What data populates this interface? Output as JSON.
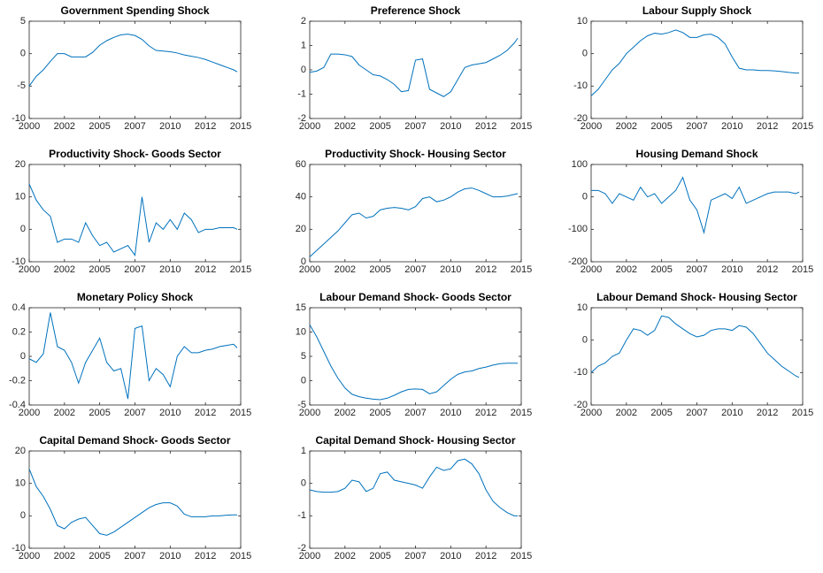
{
  "chart_data": [
    {
      "type": "line",
      "title": "Government Spending Shock",
      "x": [
        2000,
        2000.5,
        2001,
        2001.5,
        2002,
        2002.5,
        2003,
        2003.5,
        2004,
        2004.5,
        2005,
        2005.5,
        2006,
        2006.5,
        2007,
        2007.5,
        2008,
        2008.5,
        2009,
        2009.5,
        2010,
        2010.5,
        2011,
        2011.5,
        2012,
        2012.5,
        2013,
        2013.5,
        2014,
        2014.5,
        2014.75
      ],
      "series": [
        {
          "color": "#0072bd",
          "values": [
            -5,
            -3.5,
            -2.5,
            -1.2,
            0,
            0,
            -0.5,
            -0.5,
            -0.5,
            0.2,
            1.3,
            2,
            2.5,
            2.9,
            3,
            2.8,
            2.2,
            1.2,
            0.5,
            0.4,
            0.3,
            0.1,
            -0.2,
            -0.4,
            -0.6,
            -0.9,
            -1.3,
            -1.7,
            -2.1,
            -2.5,
            -2.8
          ]
        }
      ],
      "xlim": [
        2000,
        2015
      ],
      "xticks": [
        2000,
        {
          "value": 2002.5,
          "label": "2002"
        },
        2005,
        {
          "value": 2007.5,
          "label": "2007"
        },
        2010,
        {
          "value": 2012.5,
          "label": "2012"
        },
        2015
      ],
      "ylim": [
        -10,
        5
      ],
      "yticks": [
        -10,
        -5,
        0,
        5
      ]
    },
    {
      "type": "line",
      "title": "Preference Shock",
      "x": [
        2000,
        2000.5,
        2001,
        2001.5,
        2002,
        2002.5,
        2003,
        2003.5,
        2004,
        2004.5,
        2005,
        2005.5,
        2006,
        2006.5,
        2007,
        2007.5,
        2008,
        2008.5,
        2009,
        2009.5,
        2010,
        2010.5,
        2011,
        2011.5,
        2012,
        2012.5,
        2013,
        2013.5,
        2014,
        2014.5,
        2014.75
      ],
      "series": [
        {
          "color": "#0072bd",
          "values": [
            -0.1,
            -0.05,
            0.1,
            0.65,
            0.65,
            0.62,
            0.55,
            0.2,
            0,
            -0.2,
            -0.25,
            -0.4,
            -0.6,
            -0.9,
            -0.85,
            0.4,
            0.45,
            -0.8,
            -0.95,
            -1.1,
            -0.9,
            -0.4,
            0.1,
            0.2,
            0.25,
            0.3,
            0.45,
            0.6,
            0.8,
            1.1,
            1.3
          ]
        }
      ],
      "xlim": [
        2000,
        2015
      ],
      "xticks": [
        2000,
        {
          "value": 2002.5,
          "label": "2002"
        },
        2005,
        {
          "value": 2007.5,
          "label": "2007"
        },
        2010,
        {
          "value": 2012.5,
          "label": "2012"
        },
        2015
      ],
      "ylim": [
        -2,
        2
      ],
      "yticks": [
        -2,
        -1,
        0,
        1,
        2
      ]
    },
    {
      "type": "line",
      "title": "Labour Supply Shock",
      "x": [
        2000,
        2000.5,
        2001,
        2001.5,
        2002,
        2002.5,
        2003,
        2003.5,
        2004,
        2004.5,
        2005,
        2005.5,
        2006,
        2006.5,
        2007,
        2007.5,
        2008,
        2008.5,
        2009,
        2009.5,
        2010,
        2010.5,
        2011,
        2011.5,
        2012,
        2012.5,
        2013,
        2013.5,
        2014,
        2014.5,
        2014.75
      ],
      "series": [
        {
          "color": "#0072bd",
          "values": [
            -13,
            -11,
            -8,
            -5,
            -3,
            0,
            2,
            4,
            5.5,
            6.3,
            6,
            6.5,
            7.3,
            6.5,
            5,
            5,
            5.8,
            6,
            5,
            3,
            -1,
            -4.5,
            -5,
            -5,
            -5.2,
            -5.2,
            -5.3,
            -5.5,
            -5.8,
            -6,
            -6
          ]
        }
      ],
      "xlim": [
        2000,
        2015
      ],
      "xticks": [
        2000,
        {
          "value": 2002.5,
          "label": "2002"
        },
        2005,
        {
          "value": 2007.5,
          "label": "2007"
        },
        2010,
        {
          "value": 2012.5,
          "label": "2012"
        },
        2015
      ],
      "ylim": [
        -20,
        10
      ],
      "yticks": [
        -20,
        -10,
        0,
        10
      ]
    },
    {
      "type": "line",
      "title": "Productivity Shock- Goods Sector",
      "x": [
        2000,
        2000.5,
        2001,
        2001.5,
        2002,
        2002.5,
        2003,
        2003.5,
        2004,
        2004.5,
        2005,
        2005.5,
        2006,
        2006.5,
        2007,
        2007.5,
        2008,
        2008.5,
        2009,
        2009.5,
        2010,
        2010.5,
        2011,
        2011.5,
        2012,
        2012.5,
        2013,
        2013.5,
        2014,
        2014.5,
        2014.75
      ],
      "series": [
        {
          "color": "#0072bd",
          "values": [
            14,
            9,
            6,
            4,
            -4,
            -3,
            -3,
            -4,
            2,
            -2,
            -5,
            -4,
            -7,
            -6,
            -5,
            -8,
            10,
            -4,
            2,
            0,
            3,
            0,
            5,
            3,
            -1,
            0,
            0,
            0.5,
            0.5,
            0.5,
            0
          ]
        }
      ],
      "xlim": [
        2000,
        2015
      ],
      "xticks": [
        2000,
        {
          "value": 2002.5,
          "label": "2002"
        },
        2005,
        {
          "value": 2007.5,
          "label": "2007"
        },
        2010,
        {
          "value": 2012.5,
          "label": "2012"
        },
        2015
      ],
      "ylim": [
        -10,
        20
      ],
      "yticks": [
        -10,
        0,
        10,
        20
      ]
    },
    {
      "type": "line",
      "title": "Productivity Shock- Housing Sector",
      "x": [
        2000,
        2000.5,
        2001,
        2001.5,
        2002,
        2002.5,
        2003,
        2003.5,
        2004,
        2004.5,
        2005,
        2005.5,
        2006,
        2006.5,
        2007,
        2007.5,
        2008,
        2008.5,
        2009,
        2009.5,
        2010,
        2010.5,
        2011,
        2011.5,
        2012,
        2012.5,
        2013,
        2013.5,
        2014,
        2014.5,
        2014.75
      ],
      "series": [
        {
          "color": "#0072bd",
          "values": [
            3,
            7,
            11,
            15,
            19,
            24,
            29,
            30,
            27,
            28,
            32,
            33,
            33.5,
            33,
            32,
            34,
            39,
            40,
            37,
            38,
            40,
            43,
            45,
            45.5,
            44,
            42,
            40,
            40,
            40.5,
            41.5,
            42
          ]
        }
      ],
      "xlim": [
        2000,
        2015
      ],
      "xticks": [
        2000,
        {
          "value": 2002.5,
          "label": "2002"
        },
        2005,
        {
          "value": 2007.5,
          "label": "2007"
        },
        2010,
        {
          "value": 2012.5,
          "label": "2012"
        },
        2015
      ],
      "ylim": [
        0,
        60
      ],
      "yticks": [
        0,
        20,
        40,
        60
      ]
    },
    {
      "type": "line",
      "title": "Housing Demand Shock",
      "x": [
        2000,
        2000.5,
        2001,
        2001.5,
        2002,
        2002.5,
        2003,
        2003.5,
        2004,
        2004.5,
        2005,
        2005.5,
        2006,
        2006.5,
        2007,
        2007.5,
        2008,
        2008.5,
        2009,
        2009.5,
        2010,
        2010.5,
        2011,
        2011.5,
        2012,
        2012.5,
        2013,
        2013.5,
        2014,
        2014.5,
        2014.75
      ],
      "series": [
        {
          "color": "#0072bd",
          "values": [
            20,
            20,
            10,
            -20,
            10,
            0,
            -10,
            30,
            0,
            10,
            -20,
            0,
            20,
            60,
            -10,
            -40,
            -110,
            -10,
            0,
            10,
            -5,
            30,
            -20,
            -10,
            0,
            10,
            15,
            15,
            15,
            10,
            15
          ]
        }
      ],
      "xlim": [
        2000,
        2015
      ],
      "xticks": [
        2000,
        {
          "value": 2002.5,
          "label": "2002"
        },
        2005,
        {
          "value": 2007.5,
          "label": "2007"
        },
        2010,
        {
          "value": 2012.5,
          "label": "2012"
        },
        2015
      ],
      "ylim": [
        -200,
        100
      ],
      "yticks": [
        -200,
        -100,
        0,
        100
      ]
    },
    {
      "type": "line",
      "title": "Monetary Policy Shock",
      "x": [
        2000,
        2000.5,
        2001,
        2001.5,
        2002,
        2002.5,
        2003,
        2003.5,
        2004,
        2004.5,
        2005,
        2005.5,
        2006,
        2006.5,
        2007,
        2007.5,
        2008,
        2008.5,
        2009,
        2009.5,
        2010,
        2010.5,
        2011,
        2011.5,
        2012,
        2012.5,
        2013,
        2013.5,
        2014,
        2014.5,
        2014.75
      ],
      "series": [
        {
          "color": "#0072bd",
          "values": [
            -0.02,
            -0.05,
            0.02,
            0.36,
            0.08,
            0.05,
            -0.05,
            -0.22,
            -0.05,
            0.05,
            0.15,
            -0.05,
            -0.12,
            -0.1,
            -0.35,
            0.23,
            0.25,
            -0.2,
            -0.1,
            -0.15,
            -0.25,
            0,
            0.08,
            0.03,
            0.03,
            0.05,
            0.06,
            0.08,
            0.09,
            0.1,
            0.07
          ]
        }
      ],
      "xlim": [
        2000,
        2015
      ],
      "xticks": [
        2000,
        {
          "value": 2002.5,
          "label": "2002"
        },
        2005,
        {
          "value": 2007.5,
          "label": "2007"
        },
        2010,
        {
          "value": 2012.5,
          "label": "2012"
        },
        2015
      ],
      "ylim": [
        -0.4,
        0.4
      ],
      "yticks": [
        -0.4,
        -0.2,
        0,
        0.2,
        0.4
      ]
    },
    {
      "type": "line",
      "title": "Labour Demand Shock- Goods Sector",
      "x": [
        2000,
        2000.5,
        2001,
        2001.5,
        2002,
        2002.5,
        2003,
        2003.5,
        2004,
        2004.5,
        2005,
        2005.5,
        2006,
        2006.5,
        2007,
        2007.5,
        2008,
        2008.5,
        2009,
        2009.5,
        2010,
        2010.5,
        2011,
        2011.5,
        2012,
        2012.5,
        2013,
        2013.5,
        2014,
        2014.5,
        2014.75
      ],
      "series": [
        {
          "color": "#0072bd",
          "values": [
            11.5,
            9,
            6,
            3,
            0.5,
            -1.5,
            -2.8,
            -3.3,
            -3.6,
            -3.8,
            -3.9,
            -3.6,
            -3,
            -2.3,
            -1.8,
            -1.7,
            -1.8,
            -2.7,
            -2.3,
            -1,
            0.3,
            1.3,
            1.8,
            2,
            2.5,
            2.8,
            3.2,
            3.5,
            3.6,
            3.6,
            3.6
          ]
        }
      ],
      "xlim": [
        2000,
        2015
      ],
      "xticks": [
        2000,
        {
          "value": 2002.5,
          "label": "2002"
        },
        2005,
        {
          "value": 2007.5,
          "label": "2007"
        },
        2010,
        {
          "value": 2012.5,
          "label": "2012"
        },
        2015
      ],
      "ylim": [
        -5,
        15
      ],
      "yticks": [
        -5,
        0,
        5,
        10,
        15
      ]
    },
    {
      "type": "line",
      "title": "Labour Demand Shock- Housing Sector",
      "x": [
        2000,
        2000.5,
        2001,
        2001.5,
        2002,
        2002.5,
        2003,
        2003.5,
        2004,
        2004.5,
        2005,
        2005.5,
        2006,
        2006.5,
        2007,
        2007.5,
        2008,
        2008.5,
        2009,
        2009.5,
        2010,
        2010.5,
        2011,
        2011.5,
        2012,
        2012.5,
        2013,
        2013.5,
        2014,
        2014.5,
        2014.75
      ],
      "series": [
        {
          "color": "#0072bd",
          "values": [
            -10,
            -8,
            -7,
            -5,
            -4,
            0,
            3.5,
            3,
            1.5,
            3,
            7.5,
            7,
            5,
            3.5,
            2,
            1,
            1.5,
            3,
            3.5,
            3.5,
            3,
            4.5,
            4,
            2,
            -1,
            -4,
            -6,
            -8,
            -9.5,
            -11,
            -11.5
          ]
        }
      ],
      "xlim": [
        2000,
        2015
      ],
      "xticks": [
        2000,
        {
          "value": 2002.5,
          "label": "2002"
        },
        2005,
        {
          "value": 2007.5,
          "label": "2007"
        },
        2010,
        {
          "value": 2012.5,
          "label": "2012"
        },
        2015
      ],
      "ylim": [
        -20,
        10
      ],
      "yticks": [
        -20,
        -10,
        0,
        10
      ]
    },
    {
      "type": "line",
      "title": "Capital Demand Shock- Goods Sector",
      "x": [
        2000,
        2000.5,
        2001,
        2001.5,
        2002,
        2002.5,
        2003,
        2003.5,
        2004,
        2004.5,
        2005,
        2005.5,
        2006,
        2006.5,
        2007,
        2007.5,
        2008,
        2008.5,
        2009,
        2009.5,
        2010,
        2010.5,
        2011,
        2011.5,
        2012,
        2012.5,
        2013,
        2013.5,
        2014,
        2014.5,
        2014.75
      ],
      "series": [
        {
          "color": "#0072bd",
          "values": [
            14.5,
            9,
            6,
            2,
            -3,
            -4,
            -2,
            -1,
            -0.5,
            -3,
            -5.5,
            -6,
            -5,
            -3.5,
            -2,
            -0.5,
            1,
            2.5,
            3.5,
            4,
            4,
            3,
            0.5,
            -0.3,
            -0.3,
            -0.3,
            0,
            0,
            0.2,
            0.3,
            0.3
          ]
        }
      ],
      "xlim": [
        2000,
        2015
      ],
      "xticks": [
        2000,
        {
          "value": 2002.5,
          "label": "2002"
        },
        2005,
        {
          "value": 2007.5,
          "label": "2007"
        },
        2010,
        {
          "value": 2012.5,
          "label": "2012"
        },
        2015
      ],
      "ylim": [
        -10,
        20
      ],
      "yticks": [
        -10,
        0,
        10,
        20
      ]
    },
    {
      "type": "line",
      "title": "Capital Demand Shock- Housing Sector",
      "x": [
        2000,
        2000.5,
        2001,
        2001.5,
        2002,
        2002.5,
        2003,
        2003.5,
        2004,
        2004.5,
        2005,
        2005.5,
        2006,
        2006.5,
        2007,
        2007.5,
        2008,
        2008.5,
        2009,
        2009.5,
        2010,
        2010.5,
        2011,
        2011.5,
        2012,
        2012.5,
        2013,
        2013.5,
        2014,
        2014.5,
        2014.75
      ],
      "series": [
        {
          "color": "#0072bd",
          "values": [
            -0.2,
            -0.25,
            -0.27,
            -0.27,
            -0.25,
            -0.15,
            0.1,
            0.05,
            -0.25,
            -0.15,
            0.3,
            0.35,
            0.1,
            0.05,
            0,
            -0.05,
            -0.15,
            0.2,
            0.5,
            0.4,
            0.45,
            0.7,
            0.75,
            0.6,
            0.3,
            -0.2,
            -0.55,
            -0.75,
            -0.9,
            -1,
            -1
          ]
        }
      ],
      "xlim": [
        2000,
        2015
      ],
      "xticks": [
        2000,
        {
          "value": 2002.5,
          "label": "2002"
        },
        2005,
        {
          "value": 2007.5,
          "label": "2007"
        },
        2010,
        {
          "value": 2012.5,
          "label": "2012"
        },
        2015
      ],
      "ylim": [
        -2,
        1
      ],
      "yticks": [
        -2,
        -1,
        0,
        1
      ]
    }
  ]
}
